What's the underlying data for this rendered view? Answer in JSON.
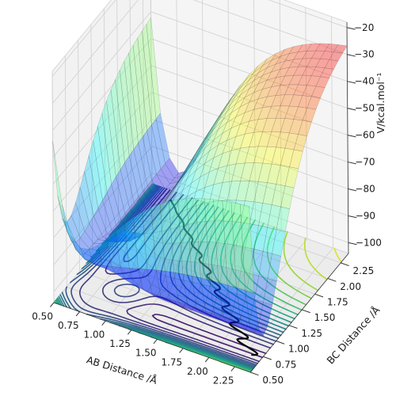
{
  "chart_data": {
    "type": "surface3d",
    "title": "",
    "x_axis": {
      "label": "AB Distance /Å",
      "ticks": [
        "0.50",
        "0.75",
        "1.00",
        "1.25",
        "1.50",
        "1.75",
        "2.00",
        "2.25"
      ],
      "range": [
        0.5,
        2.4
      ]
    },
    "y_axis": {
      "label": "BC Distance /Å",
      "ticks": [
        "0.50",
        "0.75",
        "1.00",
        "1.25",
        "1.50",
        "1.75",
        "2.00",
        "2.25"
      ],
      "range": [
        0.5,
        2.4
      ]
    },
    "z_axis": {
      "label": "V/kcal.mol⁻¹",
      "ticks": [
        "−100",
        "−90",
        "−80",
        "−70",
        "−60",
        "−50",
        "−40",
        "−30",
        "−20"
      ],
      "range": [
        -104,
        -18
      ]
    },
    "surface": {
      "description_type": "potential energy surface",
      "colormap": "jet",
      "alpha": 0.35,
      "min_energy": -104,
      "reactant_asymptote": -100,
      "saddle_energy": -60,
      "plateau_energy": -20
    },
    "contours": {
      "colormap": "viridis",
      "offset_z": -104,
      "levels": [
        -103,
        -100,
        -96,
        -92,
        -88,
        -84,
        -80,
        -76,
        -72,
        -68,
        -64,
        -60,
        -56,
        -52,
        -48,
        -44,
        -40,
        -36,
        -32,
        -28,
        -24
      ]
    },
    "trajectory": {
      "color": "#000000",
      "start": [
        2.3,
        0.74
      ],
      "end": [
        0.74,
        2.3
      ]
    },
    "grid": true
  }
}
